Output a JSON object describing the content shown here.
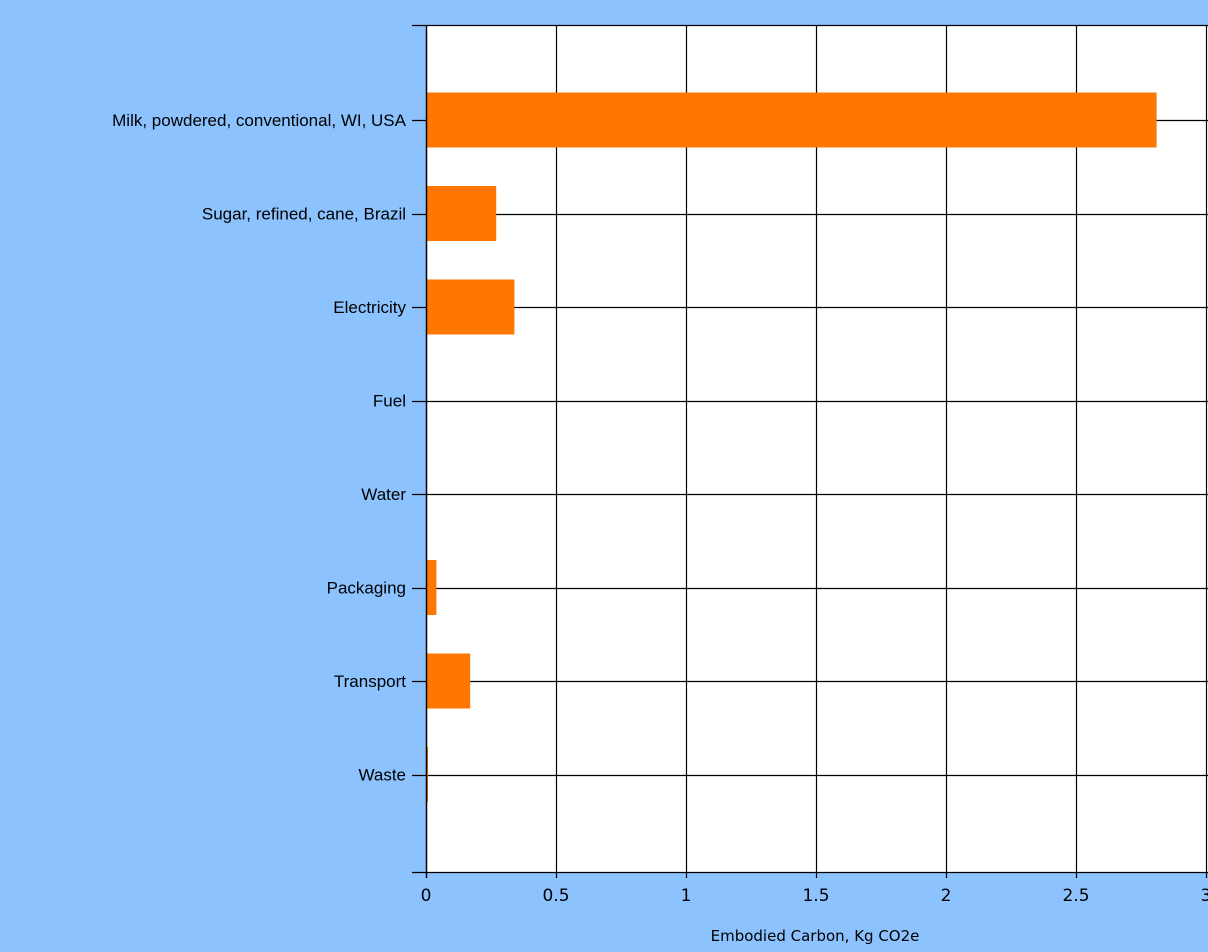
{
  "chart_data": {
    "type": "bar",
    "orientation": "horizontal",
    "categories": [
      "Milk, powdered, conventional, WI, USA",
      "Sugar, refined, cane, Brazil",
      "Electricity",
      "Fuel",
      "Water",
      "Packaging",
      "Transport",
      "Waste"
    ],
    "values": [
      2.81,
      0.27,
      0.34,
      0,
      0,
      0.04,
      0.17,
      0.005
    ],
    "xlabel": "Embodied Carbon, Kg CO2e",
    "ylabel": "",
    "xlim": [
      0,
      3
    ],
    "xticks": [
      "0",
      "0.5",
      "1",
      "1.5",
      "2",
      "2.5",
      "3"
    ],
    "grid": true,
    "legend": "none",
    "colors": {
      "bar": "#ff7700",
      "background": "#8cc3ff",
      "plot_background": "#ffffff",
      "grid": "#000000"
    }
  }
}
